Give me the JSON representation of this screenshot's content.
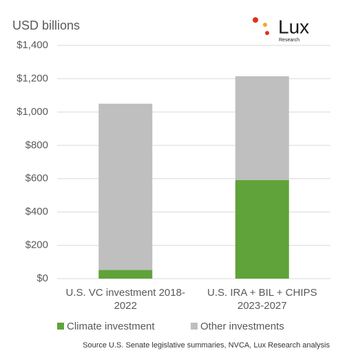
{
  "chart_data": {
    "type": "stacked_bar",
    "y_axis_label": "USD billions",
    "logo": {
      "text": "Lux",
      "subtext": "Research"
    },
    "categories": [
      "U.S. VC investment 2018-2022",
      "U.S. IRA + BIL + CHIPS 2023-2027"
    ],
    "series": [
      {
        "name": "Climate investment",
        "color": "#5fa33a",
        "values": [
          52,
          592
        ]
      },
      {
        "name": "Other investments",
        "color": "#bfbfbf",
        "values": [
          998,
          623
        ]
      }
    ],
    "ylim": [
      0,
      1400
    ],
    "yticks": [
      {
        "value": 0,
        "label": "$0"
      },
      {
        "value": 200,
        "label": "$200"
      },
      {
        "value": 400,
        "label": "$400"
      },
      {
        "value": 600,
        "label": "$600"
      },
      {
        "value": 800,
        "label": "$800"
      },
      {
        "value": 1000,
        "label": "$1,000"
      },
      {
        "value": 1200,
        "label": "$1,200"
      },
      {
        "value": 1400,
        "label": "$1,400"
      }
    ],
    "grid": true,
    "source": "Source U.S. Senate legislative summaries, NVCA, Lux Research analysis"
  }
}
